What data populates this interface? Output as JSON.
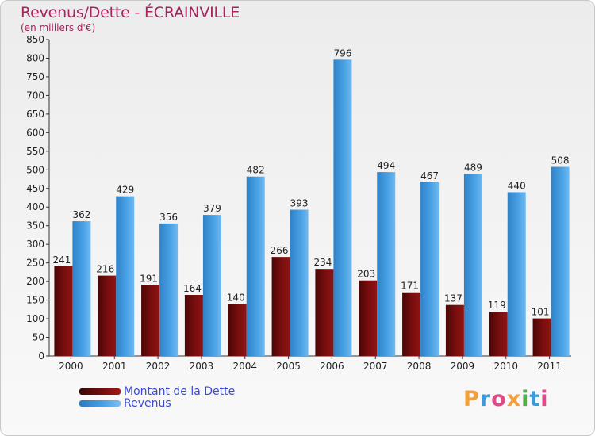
{
  "page": {
    "title": "Revenus/Dette - ÉCRAINVILLE",
    "subtitle": "(en milliers d'€)"
  },
  "colors": {
    "debt": "#7a0e0e",
    "revenue": "#4aa2e6",
    "title": "#a7245e",
    "legend_text": "#3b49d8"
  },
  "chart_data": {
    "type": "bar",
    "title": "Revenus/Dette - ÉCRAINVILLE",
    "ylabel": "(en milliers d'€)",
    "xlabel": "",
    "ylim": [
      0,
      850
    ],
    "ytick_step": 50,
    "grid": false,
    "legend_position": "bottom-left",
    "categories": [
      "2000",
      "2001",
      "2002",
      "2003",
      "2004",
      "2005",
      "2006",
      "2007",
      "2008",
      "2009",
      "2010",
      "2011"
    ],
    "series": [
      {
        "name": "Montant de la Dette",
        "color": "#7a0e0e",
        "values": [
          241,
          216,
          191,
          164,
          140,
          266,
          234,
          203,
          171,
          137,
          119,
          101
        ]
      },
      {
        "name": "Revenus",
        "color": "#4aa2e6",
        "values": [
          362,
          429,
          356,
          379,
          482,
          393,
          796,
          494,
          467,
          489,
          440,
          508
        ]
      }
    ]
  },
  "legend": {
    "items": [
      {
        "label": "Montant de la Dette"
      },
      {
        "label": "Revenus"
      }
    ]
  },
  "logo": {
    "letters": [
      {
        "char": "P",
        "color": "#f0a03c"
      },
      {
        "char": "r",
        "color": "#3c9ad8"
      },
      {
        "char": "o",
        "color": "#e04a8a"
      },
      {
        "char": "x",
        "color": "#f0a03c"
      },
      {
        "char": "i",
        "color": "#4fb04a"
      },
      {
        "char": "t",
        "color": "#3c9ad8"
      },
      {
        "char": "i",
        "color": "#e04a8a"
      }
    ]
  }
}
